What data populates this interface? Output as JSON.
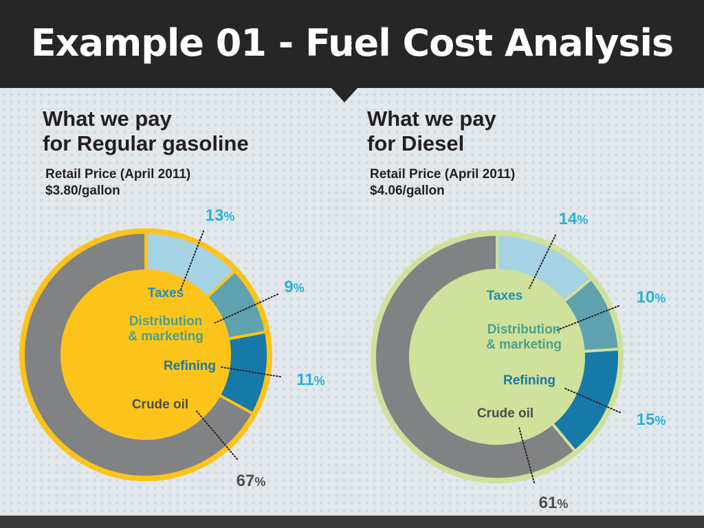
{
  "slide": {
    "title": "Example 01 - Fuel Cost Analysis",
    "slide_number": "2"
  },
  "panels": [
    {
      "heading_line1": "What we pay",
      "heading_line2": "for Regular gasoline",
      "price_label": "Retail Price (April 2011)",
      "price_value": "$3.80/gallon"
    },
    {
      "heading_line1": "What we pay",
      "heading_line2": "for Diesel",
      "price_label": "Retail Price (April 2011)",
      "price_value": "$4.06/gallon"
    }
  ],
  "chart_data": [
    {
      "type": "pie",
      "title": "What we pay for Regular gasoline",
      "subtitle": "Retail Price (April 2011) $3.80/gallon",
      "categories": [
        "Taxes",
        "Distribution & marketing",
        "Refining",
        "Crude oil"
      ],
      "values": [
        13,
        9,
        11,
        67
      ],
      "value_labels": [
        "13",
        "9",
        "11",
        "67"
      ],
      "unit": "%",
      "colors": [
        "#a6d3e3",
        "#5ea2b0",
        "#1779a8",
        "#808284"
      ],
      "center_color": "#fcc41a",
      "ring_border_color": "#fcc41a"
    },
    {
      "type": "pie",
      "title": "What we pay for Diesel",
      "subtitle": "Retail Price (April 2011) $4.06/gallon",
      "categories": [
        "Taxes",
        "Distribution & marketing",
        "Refining",
        "Crude oil"
      ],
      "values": [
        14,
        10,
        15,
        61
      ],
      "value_labels": [
        "14",
        "10",
        "15",
        "61"
      ],
      "unit": "%",
      "colors": [
        "#a6d3e3",
        "#5ea2b0",
        "#1779a8",
        "#808284"
      ],
      "center_color": "#cfe19a",
      "ring_border_color": "#cfe19a"
    }
  ],
  "theme": {
    "label_taxes_color": "#1e8fb5",
    "label_distribution_color": "#4aa08e",
    "label_refining_color": "#1779a8",
    "label_crude_color": "#4d4d4f",
    "percent_color": "#2bb1d6",
    "percent_dark_color": "#4d4d4f"
  }
}
